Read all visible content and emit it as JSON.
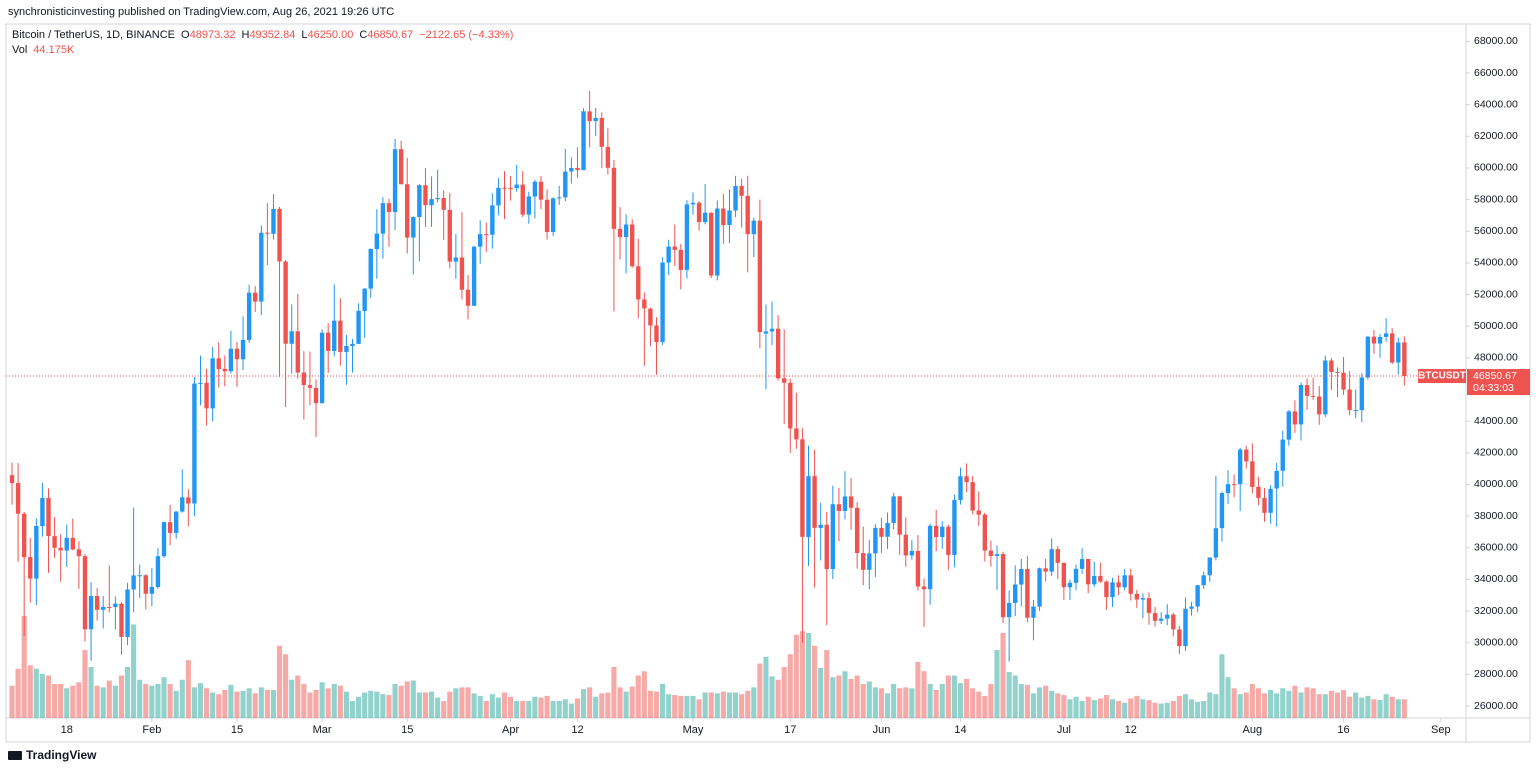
{
  "header": {
    "publisher": "synchronisticinvesting published on TradingView.com, Aug 26, 2021 19:26 UTC"
  },
  "footer": {
    "brand": "TradingView"
  },
  "chart_data": {
    "type": "candlestick",
    "legend": {
      "symbol": "Bitcoin / TetherUS, 1D, BINANCE",
      "fields": [
        {
          "key": "O",
          "value": "48973.32"
        },
        {
          "key": "H",
          "value": "49352.84"
        },
        {
          "key": "L",
          "value": "46250.00"
        },
        {
          "key": "C",
          "value": "46850.67"
        }
      ],
      "change": "−2122.65 (−4.33%)",
      "volume_key": "Vol",
      "volume_value": "44.175K"
    },
    "price_tag": {
      "symbol": "BTCUSDT",
      "price": "46850.67",
      "countdown": "04:33:03"
    },
    "up_color": "#2196f3",
    "down_color": "#ef5350",
    "grid": false,
    "xlim": [
      -0.99,
      239.14
    ],
    "xticks": [
      {
        "value": 9,
        "label": "18"
      },
      {
        "value": 23,
        "label": "Feb"
      },
      {
        "value": 37,
        "label": "15"
      },
      {
        "value": 51,
        "label": "Mar"
      },
      {
        "value": 65,
        "label": "15"
      },
      {
        "value": 82,
        "label": "Apr"
      },
      {
        "value": 93,
        "label": "12"
      },
      {
        "value": 112,
        "label": "May"
      },
      {
        "value": 128,
        "label": "17"
      },
      {
        "value": 143,
        "label": "Jun"
      },
      {
        "value": 156,
        "label": "14"
      },
      {
        "value": 173,
        "label": "Jul"
      },
      {
        "value": 184,
        "label": "12"
      },
      {
        "value": 204,
        "label": "Aug"
      },
      {
        "value": 219,
        "label": "16"
      },
      {
        "value": 235,
        "label": "Sep"
      }
    ],
    "ylim": [
      25242,
      69096
    ],
    "yticks": [
      {
        "value": 26000,
        "label": "26000.00"
      },
      {
        "value": 28000,
        "label": "28000.00"
      },
      {
        "value": 30000,
        "label": "30000.00"
      },
      {
        "value": 32000,
        "label": "32000.00"
      },
      {
        "value": 34000,
        "label": "34000.00"
      },
      {
        "value": 36000,
        "label": "36000.00"
      },
      {
        "value": 38000,
        "label": "38000.00"
      },
      {
        "value": 40000,
        "label": "40000.00"
      },
      {
        "value": 42000,
        "label": "42000.00"
      },
      {
        "value": 44000,
        "label": "44000.00"
      },
      {
        "value": 48000,
        "label": "48000.00"
      },
      {
        "value": 50000,
        "label": "50000.00"
      },
      {
        "value": 52000,
        "label": "52000.00"
      },
      {
        "value": 54000,
        "label": "54000.00"
      },
      {
        "value": 56000,
        "label": "56000.00"
      },
      {
        "value": 58000,
        "label": "58000.00"
      },
      {
        "value": 60000,
        "label": "60000.00"
      },
      {
        "value": 62000,
        "label": "62000.00"
      },
      {
        "value": 64000,
        "label": "64000.00"
      },
      {
        "value": 66000,
        "label": "66000.00"
      },
      {
        "value": 68000,
        "label": "68000.00"
      }
    ],
    "open": [
      40586,
      40088,
      38150,
      35410,
      34049,
      37371,
      39145,
      36737,
      35995,
      35824,
      36622,
      35901,
      35468,
      30851,
      32950,
      32078,
      32259,
      32251,
      32464,
      30362,
      33368,
      34246,
      34262,
      33093,
      33518,
      35467,
      37619,
      36936,
      38289,
      39181,
      38795,
      46374,
      46420,
      44807,
      47968,
      47298,
      47156,
      48580,
      47911,
      49134,
      52117,
      51552,
      55906,
      55841,
      57412,
      54088,
      48891,
      49677,
      47074,
      46277,
      46103,
      45134,
      49595,
      48436,
      50349,
      48375,
      48746,
      48882,
      50959,
      52376,
      54874,
      55851,
      57773,
      57222,
      61188,
      58968,
      55600,
      56900,
      58912,
      57641,
      58030,
      58100,
      57351,
      54083,
      54342,
      52303,
      51293,
      55026,
      55817,
      55777,
      57635,
      58745,
      58740,
      58720,
      58950,
      57051,
      58202,
      59129,
      57990,
      55953,
      58077,
      58142,
      59778,
      60001,
      59861,
      63575,
      62959,
      63158,
      61334,
      60007,
      56150,
      55633,
      56425,
      53787,
      51690,
      51110,
      50047,
      49005,
      54022,
      55033,
      54825,
      53556,
      57697,
      57797,
      56578,
      57169,
      53200,
      57436,
      56393,
      57315,
      58866,
      58240,
      55816,
      56670,
      49537,
      49671,
      49844,
      46708,
      46426,
      43538,
      42850,
      36672,
      40526,
      37253,
      37455,
      34656,
      38750,
      38323,
      39241,
      38529,
      35661,
      34605,
      35641,
      37254,
      36694,
      37568,
      39246,
      36829,
      35516,
      35796,
      33556,
      33380,
      37389,
      36677,
      37331,
      35546,
      39020,
      40516,
      40143,
      38349,
      38098,
      35820,
      35484,
      35601,
      31614,
      32510,
      33675,
      34663,
      31577,
      32283,
      34702,
      34494,
      35911,
      35045,
      33502,
      33786,
      34669,
      35288,
      33690,
      34221,
      33863,
      32875,
      33815,
      33502,
      34259,
      33086,
      32729,
      32820,
      31874,
      31384,
      31520,
      31779,
      30839,
      29790,
      32144,
      32287,
      33635,
      34261,
      35381,
      37241,
      39456,
      40019,
      40018,
      42207,
      41461,
      39850,
      39146,
      38208,
      39744,
      40865,
      42832,
      44614,
      43794,
      46281,
      45596,
      45555,
      44428,
      47834,
      47112,
      47055,
      45994,
      44696,
      44700,
      46760,
      49339,
      48905,
      49322,
      49546,
      47706,
      48973.32
    ],
    "high": [
      41380,
      41350,
      38264,
      36628,
      37850,
      40100,
      39747,
      37950,
      36852,
      37469,
      37850,
      36415,
      35600,
      33826,
      33456,
      32944,
      34875,
      32921,
      32557,
      33783,
      38531,
      34933,
      34342,
      34717,
      35984,
      37662,
      38708,
      38310,
      40955,
      39700,
      46794,
      48142,
      47310,
      48678,
      48985,
      48150,
      49707,
      49010,
      50622,
      52618,
      52530,
      56368,
      57767,
      58352,
      57535,
      54183,
      51374,
      52041,
      48424,
      48394,
      46638,
      49790,
      50200,
      52640,
      51773,
      49448,
      49200,
      51450,
      52402,
      54900,
      57387,
      58150,
      58058,
      61844,
      61724,
      60633,
      56938,
      58981,
      60000,
      59468,
      59880,
      58589,
      58430,
      55830,
      57200,
      53238,
      55073,
      56700,
      56559,
      58400,
      59368,
      59800,
      59490,
      60200,
      59791,
      58500,
      59251,
      59495,
      58650,
      58153,
      58869,
      61200,
      60659,
      61300,
      63777,
      64854,
      63800,
      63520,
      62506,
      60499,
      57526,
      57076,
      56757,
      55521,
      52130,
      51166,
      50567,
      54356,
      55460,
      56428,
      55200,
      57963,
      58458,
      57911,
      58981,
      57200,
      57939,
      58360,
      58650,
      59500,
      59300,
      59500,
      56862,
      58000,
      51367,
      51570,
      50700,
      49800,
      46686,
      45799,
      43546,
      42451,
      42200,
      38839,
      38271,
      39920,
      39791,
      40841,
      40411,
      38877,
      37338,
      36488,
      37499,
      37894,
      38225,
      39476,
      39289,
      37925,
      36480,
      36800,
      34070,
      37534,
      38400,
      37680,
      37463,
      39380,
      41064,
      41330,
      40528,
      39560,
      38208,
      36457,
      36137,
      35750,
      33298,
      34881,
      35298,
      35500,
      32700,
      34749,
      35297,
      36600,
      36100,
      35057,
      33977,
      34945,
      35967,
      35293,
      35118,
      35059,
      33928,
      34100,
      34262,
      34666,
      34678,
      33340,
      33114,
      33185,
      32249,
      31940,
      32435,
      31899,
      31063,
      32858,
      32591,
      33650,
      34500,
      35398,
      40550,
      39542,
      40900,
      40640,
      42316,
      42448,
      42599,
      40480,
      39780,
      39969,
      41350,
      43392,
      44700,
      45310,
      46454,
      46700,
      46743,
      46218,
      48144,
      48000,
      47400,
      48054,
      47161,
      46000,
      47033,
      49382,
      49757,
      49500,
      50500,
      49875,
      49283,
      49352.84
    ],
    "low": [
      38720,
      35111,
      30420,
      32531,
      32380,
      36701,
      34408,
      35357,
      33850,
      34800,
      35844,
      33400,
      30071,
      28850,
      31390,
      30900,
      31910,
      30837,
      29241,
      29842,
      31915,
      32825,
      32100,
      32296,
      33418,
      35362,
      36161,
      36570,
      38215,
      37351,
      37988,
      45000,
      43727,
      43994,
      46125,
      46202,
      47014,
      46174,
      47225,
      48947,
      50901,
      50710,
      53863,
      55477,
      46800,
      44892,
      47003,
      46674,
      44106,
      45000,
      43000,
      45115,
      47047,
      48100,
      47500,
      46300,
      47070,
      48882,
      49274,
      51789,
      53005,
      54272,
      55013,
      56079,
      58966,
      54600,
      53271,
      54123,
      56270,
      56270,
      57820,
      55450,
      53650,
      53000,
      51700,
      50427,
      51278,
      53950,
      54691,
      54900,
      57000,
      56769,
      57935,
      58500,
      56900,
      56478,
      56817,
      57413,
      55473,
      55700,
      57670,
      57902,
      59017,
      59380,
      59861,
      61301,
      62020,
      60000,
      59580,
      50931,
      54221,
      53329,
      53696,
      50500,
      47500,
      48734,
      46930,
      48817,
      53222,
      53813,
      52330,
      53013,
      57053,
      56035,
      56437,
      53046,
      52900,
      55200,
      55241,
      56900,
      56235,
      53400,
      54370,
      48600,
      46000,
      48805,
      46555,
      43825,
      42001,
      42250,
      30000,
      34850,
      33488,
      35200,
      31111,
      34031,
      36419,
      37800,
      37134,
      34685,
      33632,
      33379,
      34154,
      35667,
      35920,
      37170,
      35555,
      34800,
      35245,
      33300,
      31000,
      32396,
      35782,
      35936,
      34600,
      34757,
      38730,
      39506,
      38116,
      37365,
      35129,
      34803,
      33336,
      31251,
      28805,
      31683,
      32286,
      31275,
      30151,
      32000,
      33862,
      34225,
      34017,
      32711,
      32699,
      33316,
      34357,
      33125,
      33532,
      33777,
      32077,
      32261,
      33004,
      33306,
      32658,
      32202,
      31550,
      31133,
      31020,
      31175,
      31108,
      30407,
      29278,
      29482,
      31708,
      31925,
      33401,
      33851,
      35205,
      36383,
      38772,
      39200,
      38313,
      41000,
      39422,
      38690,
      37642,
      37508,
      37332,
      39853,
      42446,
      43261,
      42779,
      44723,
      45353,
      43770,
      44256,
      45971,
      45525,
      45660,
      44376,
      44203,
      43927,
      46622,
      48263,
      48000,
      49028,
      47600,
      46950,
      46250
    ],
    "close": [
      40088,
      38150,
      35404,
      34051,
      37371,
      39144,
      36742,
      35994,
      35828,
      36631,
      35891,
      35468,
      30850,
      32945,
      32078,
      32259,
      32254,
      32467,
      30366,
      33364,
      34252,
      34262,
      33092,
      33526,
      35466,
      37618,
      36936,
      38290,
      39186,
      38795,
      46374,
      46420,
      44807,
      47969,
      47287,
      47153,
      48577,
      47911,
      49133,
      52119,
      51553,
      55906,
      55842,
      57408,
      54088,
      48891,
      49676,
      47073,
      46277,
      46106,
      45135,
      49587,
      48440,
      50349,
      48374,
      48751,
      48882,
      50971,
      52375,
      54884,
      55851,
      57773,
      57221,
      61188,
      58968,
      55600,
      56900,
      58912,
      57648,
      58030,
      58102,
      57351,
      54083,
      54340,
      52303,
      51293,
      55025,
      55817,
      55778,
      57635,
      58746,
      58740,
      58720,
      58950,
      57051,
      58202,
      59129,
      57991,
      55953,
      58077,
      58142,
      59769,
      60002,
      59860,
      63578,
      62959,
      63159,
      61334,
      60006,
      56150,
      55633,
      56425,
      53787,
      51690,
      51125,
      50047,
      49004,
      54022,
      55034,
      54824,
      53556,
      57697,
      57797,
      56578,
      57169,
      53200,
      57436,
      56393,
      57314,
      58862,
      58240,
      55816,
      56670,
      49631,
      49671,
      49841,
      46708,
      46426,
      43538,
      42849,
      36690,
      40526,
      37252,
      37449,
      34655,
      38750,
      38325,
      39241,
      38529,
      35663,
      34605,
      35642,
      37254,
      36694,
      37568,
      39246,
      36829,
      35514,
      35796,
      33552,
      33380,
      37388,
      36675,
      37331,
      35546,
      39020,
      40516,
      40144,
      38349,
      38092,
      35820,
      35483,
      35600,
      31608,
      32509,
      33678,
      34663,
      31584,
      32283,
      34700,
      34494,
      35911,
      35045,
      33504,
      33786,
      34669,
      35287,
      33690,
      34220,
      33862,
      32875,
      33815,
      33502,
      34259,
      33086,
      32729,
      32820,
      31880,
      31383,
      31520,
      31778,
      30839,
      29790,
      32144,
      32287,
      33634,
      34258,
      35381,
      37237,
      39457,
      40019,
      40016,
      42206,
      41461,
      39845,
      39147,
      38207,
      39723,
      40862,
      42836,
      44614,
      43792,
      46285,
      45595,
      45555,
      44428,
      47834,
      47112,
      47055,
      45993,
      44696,
      44700,
      46761,
      49339,
      48905,
      49321,
      49546,
      47706,
      48973,
      46850.67
    ],
    "volume": [
      76,
      116,
      240,
      124,
      116,
      104,
      100,
      80,
      80,
      70,
      76,
      84,
      160,
      120,
      76,
      72,
      88,
      76,
      100,
      120,
      220,
      90,
      80,
      76,
      80,
      96,
      80,
      64,
      90,
      136,
      72,
      82,
      70,
      60,
      56,
      66,
      78,
      62,
      64,
      70,
      58,
      72,
      66,
      66,
      170,
      150,
      90,
      100,
      80,
      60,
      66,
      84,
      70,
      80,
      76,
      62,
      40,
      50,
      60,
      64,
      62,
      56,
      54,
      80,
      76,
      86,
      88,
      60,
      60,
      62,
      48,
      40,
      62,
      70,
      72,
      72,
      58,
      52,
      40,
      56,
      48,
      60,
      50,
      40,
      40,
      40,
      50,
      48,
      52,
      40,
      40,
      44,
      34,
      46,
      68,
      72,
      50,
      58,
      60,
      120,
      72,
      62,
      74,
      100,
      110,
      64,
      62,
      80,
      56,
      54,
      52,
      52,
      52,
      44,
      60,
      60,
      58,
      62,
      60,
      60,
      56,
      64,
      72,
      128,
      144,
      98,
      90,
      120,
      150,
      196,
      204,
      200,
      170,
      118,
      160,
      96,
      100,
      110,
      92,
      100,
      80,
      86,
      72,
      70,
      58,
      80,
      70,
      72,
      70,
      132,
      110,
      80,
      66,
      80,
      100,
      100,
      82,
      92,
      70,
      62,
      52,
      80,
      160,
      200,
      108,
      100,
      80,
      78,
      58,
      72,
      76,
      64,
      58,
      54,
      44,
      50,
      40,
      50,
      42,
      46,
      54,
      44,
      40,
      36,
      46,
      52,
      44,
      42,
      36,
      34,
      36,
      40,
      52,
      56,
      44,
      38,
      40,
      60,
      56,
      150,
      96,
      70,
      56,
      60,
      80,
      70,
      58,
      66,
      58,
      70,
      64,
      76,
      60,
      72,
      70,
      56,
      56,
      64,
      60,
      66,
      50,
      60,
      48,
      52,
      44,
      42,
      56,
      50,
      44,
      44.175
    ]
  }
}
